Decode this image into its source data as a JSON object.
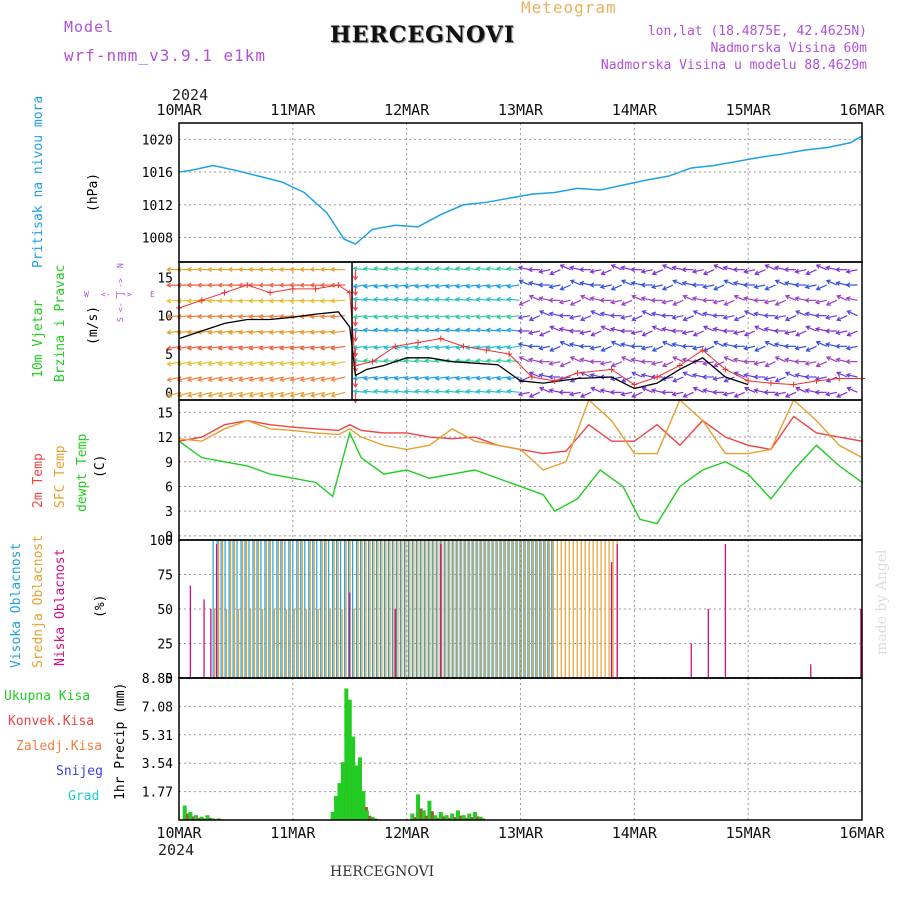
{
  "header": {
    "model_label": "Model",
    "model_name": "wrf-nmm_v3.9.1 e1km",
    "station": "HERCEGNOVI",
    "meteogram": "Meteogram",
    "lonlat": "lon,lat (18.4875E, 42.4625N)",
    "elevation": "Nadmorska Visina 60m",
    "model_elevation": "Nadmorska Visina u modelu 88.4629m",
    "footer_station": "HERCEGNOVI",
    "credit": "made by Angel"
  },
  "time_axis": {
    "year": "2024",
    "dates": [
      "10MAR",
      "11MAR",
      "12MAR",
      "13MAR",
      "14MAR",
      "15MAR",
      "16MAR"
    ]
  },
  "panel_labels": {
    "pressure": {
      "name": "Pritisak na nivou mora",
      "unit": "(hPa)"
    },
    "wind": {
      "name1": "10m Vjetar",
      "name2": "Brzina i Pravac",
      "unit": "(m/s)",
      "compass": [
        "W",
        "<-",
        "|",
        "->",
        "E",
        "S",
        "<-",
        "|",
        "->",
        "N"
      ]
    },
    "temp": {
      "l1": "2m Temp",
      "l2": "SFC Temp",
      "l3": "dewpt Temp",
      "unit": "(C)"
    },
    "cloud": {
      "l1": "Visoka Oblacnost",
      "l2": "Srednja Oblacnost",
      "l3": "Niska Oblacnost",
      "unit": "(%)"
    },
    "precip": {
      "l1": "Ukupna Kisa",
      "l2": "Konvek.Kisa",
      "l3": "Zaledj.Kisa",
      "l4": "Snijeg",
      "l5": "Grad",
      "unit": "1hr Precip (mm)"
    }
  },
  "colors": {
    "pressure": "#1ea0e6",
    "t2m": "#ee4444",
    "tsfc": "#e6a030",
    "dewpt": "#22cc22",
    "cloud_high": "#22a0e0",
    "cloud_mid": "#e6a030",
    "cloud_low": "#cc1080",
    "precip_total": "#22cc22",
    "precip_conv": "#aa5533",
    "label_purple": "#b050d8",
    "label_orange": "#e8b060"
  },
  "chart_data": [
    {
      "type": "line",
      "name": "pressure",
      "ylim": [
        1005,
        1022
      ],
      "yticks": [
        1008,
        1012,
        1016,
        1020
      ],
      "x_days": [
        0,
        0.1,
        0.2,
        0.3,
        0.5,
        0.7,
        0.9,
        1.1,
        1.3,
        1.45,
        1.55,
        1.7,
        1.9,
        2.1,
        2.3,
        2.5,
        2.7,
        2.9,
        3.1,
        3.3,
        3.5,
        3.7,
        3.9,
        4.1,
        4.3,
        4.5,
        4.7,
        4.9,
        5.1,
        5.3,
        5.5,
        5.7,
        5.9,
        6.0
      ],
      "values": [
        1016,
        1016.2,
        1016.5,
        1016.8,
        1016.2,
        1015.5,
        1014.8,
        1013.5,
        1011,
        1007.8,
        1007.2,
        1009,
        1009.5,
        1009.3,
        1010.8,
        1012,
        1012.3,
        1012.8,
        1013.3,
        1013.5,
        1014,
        1013.8,
        1014.4,
        1015,
        1015.5,
        1016.5,
        1016.8,
        1017.3,
        1017.8,
        1018.2,
        1018.7,
        1019,
        1019.6,
        1020.4
      ]
    },
    {
      "type": "line",
      "name": "wind_speed",
      "ylim": [
        -1,
        17
      ],
      "yticks": [
        0,
        5,
        10,
        15
      ],
      "x_days": [
        0,
        0.2,
        0.4,
        0.6,
        0.8,
        1.0,
        1.2,
        1.4,
        1.5,
        1.55,
        1.65,
        1.8,
        2.0,
        2.2,
        2.4,
        2.6,
        2.8,
        3.0,
        3.2,
        3.5,
        3.8,
        4.0,
        4.2,
        4.4,
        4.6,
        4.8,
        5.0
      ],
      "values": [
        7,
        8,
        9,
        9.5,
        9.5,
        9.8,
        10.2,
        10.5,
        8.5,
        2.2,
        3,
        3.5,
        4.5,
        4.5,
        4,
        3.8,
        3.6,
        1.5,
        1.2,
        1.8,
        2,
        0.5,
        1.2,
        3,
        4.5,
        2,
        1
      ],
      "gust_x_days": [
        0,
        0.2,
        0.4,
        0.6,
        0.8,
        1.0,
        1.2,
        1.4,
        1.5,
        1.55,
        1.7,
        1.9,
        2.1,
        2.3,
        2.5,
        2.7,
        2.9,
        3.1,
        3.3,
        3.5,
        3.8,
        4.0,
        4.2,
        4.4,
        4.6,
        4.8,
        5.0,
        5.2,
        5.4,
        5.6,
        5.8,
        6.0
      ],
      "gust_values": [
        11,
        12,
        13,
        14,
        13,
        13.5,
        13.5,
        14,
        13,
        3.5,
        4,
        6,
        6.5,
        7,
        6,
        5.5,
        5,
        2,
        1.5,
        2.5,
        3,
        1,
        2,
        3.5,
        5.5,
        3,
        1.5,
        1.2,
        1,
        1.5,
        1.8,
        1.8
      ]
    },
    {
      "type": "line",
      "name": "temperature",
      "ylim": [
        -0.5,
        16.5
      ],
      "yticks": [
        0,
        3,
        6,
        9,
        12,
        15
      ],
      "series": [
        {
          "name": "2m Temp",
          "x_days": [
            0,
            0.2,
            0.4,
            0.6,
            0.8,
            1.0,
            1.2,
            1.4,
            1.5,
            1.6,
            1.8,
            2.0,
            2.2,
            2.4,
            2.6,
            2.8,
            3.0,
            3.2,
            3.4,
            3.6,
            3.8,
            4.0,
            4.2,
            4.4,
            4.6,
            4.8,
            5.0,
            5.2,
            5.4,
            5.6,
            5.8,
            6.0
          ],
          "values": [
            11.5,
            12,
            13.5,
            14,
            13.5,
            13.2,
            13,
            12.8,
            13.5,
            12.8,
            12.5,
            12.5,
            12,
            11.8,
            12,
            11,
            10.5,
            10,
            10.3,
            13.5,
            11.5,
            11.5,
            13.5,
            11,
            14,
            12,
            11,
            10.5,
            14.5,
            12.5,
            12,
            11.5
          ]
        },
        {
          "name": "SFC Temp",
          "x_days": [
            0,
            0.2,
            0.4,
            0.6,
            0.8,
            1.0,
            1.2,
            1.4,
            1.5,
            1.6,
            1.8,
            2.0,
            2.2,
            2.4,
            2.6,
            2.8,
            3.0,
            3.2,
            3.4,
            3.6,
            3.8,
            4.0,
            4.2,
            4.4,
            4.6,
            4.8,
            5.0,
            5.2,
            5.4,
            5.6,
            5.8,
            6.0
          ],
          "values": [
            11.8,
            11.5,
            13,
            14,
            13,
            12.8,
            12.5,
            12.3,
            13,
            12,
            11,
            10.5,
            11,
            13,
            11.5,
            11,
            10.5,
            8,
            9,
            16.5,
            14,
            10,
            10,
            16.5,
            14,
            10,
            10,
            10.5,
            16.5,
            14,
            11,
            9.5
          ]
        },
        {
          "name": "dewpt Temp",
          "x_days": [
            0,
            0.2,
            0.4,
            0.6,
            0.8,
            1.0,
            1.2,
            1.35,
            1.5,
            1.6,
            1.8,
            2.0,
            2.2,
            2.4,
            2.6,
            2.8,
            3.0,
            3.2,
            3.3,
            3.5,
            3.7,
            3.9,
            4.05,
            4.2,
            4.4,
            4.6,
            4.8,
            5.0,
            5.2,
            5.4,
            5.6,
            5.8,
            6.0
          ],
          "values": [
            11.5,
            9.5,
            9,
            8.5,
            7.5,
            7,
            6.5,
            4.8,
            12.5,
            9.5,
            7.5,
            8,
            7,
            7.5,
            8,
            7,
            6,
            5,
            3,
            4.5,
            8,
            6,
            2,
            1.5,
            6,
            8,
            9,
            7.5,
            4.5,
            8,
            11,
            8.5,
            6.5
          ]
        }
      ]
    },
    {
      "type": "bar",
      "name": "cloud_cover",
      "ylim": [
        0,
        100
      ],
      "yticks": [
        0,
        25,
        50,
        75,
        100
      ]
    },
    {
      "type": "bar",
      "name": "precip",
      "ylim": [
        0,
        8.85
      ],
      "yticks": [
        1.77,
        3.54,
        5.31,
        7.08,
        8.85
      ],
      "x_days": [
        0.05,
        0.1,
        0.15,
        0.2,
        0.25,
        0.3,
        0.35,
        1.35,
        1.38,
        1.41,
        1.44,
        1.47,
        1.5,
        1.53,
        1.56,
        1.59,
        1.62,
        1.65,
        1.7,
        2.05,
        2.1,
        2.15,
        2.2,
        2.25,
        2.3,
        2.35,
        2.4,
        2.45,
        2.5,
        2.55,
        2.6,
        2.65
      ],
      "values": [
        0.9,
        0.5,
        0.3,
        0.2,
        0.3,
        0.1,
        0.1,
        0.5,
        1.5,
        2.3,
        3.6,
        8.2,
        7.5,
        5.2,
        3.4,
        3.9,
        1.8,
        0.6,
        0.2,
        0.4,
        1.6,
        0.6,
        1.2,
        0.3,
        0.5,
        0.3,
        0.4,
        0.6,
        0.3,
        0.4,
        0.5,
        0.2
      ]
    }
  ]
}
